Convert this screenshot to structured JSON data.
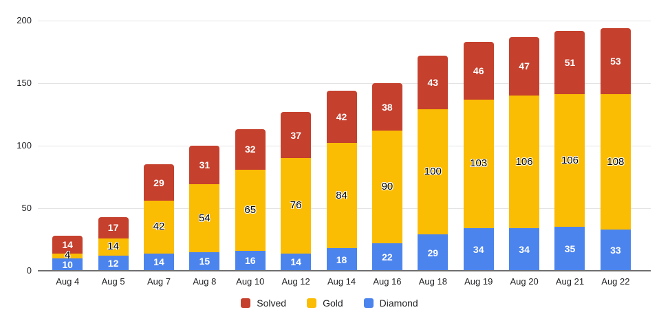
{
  "chart_data": {
    "type": "bar",
    "stacked": true,
    "title": "",
    "xlabel": "",
    "ylabel": "",
    "categories": [
      "Aug 4",
      "Aug 5",
      "Aug 7",
      "Aug 8",
      "Aug 10",
      "Aug 12",
      "Aug 14",
      "Aug 16",
      "Aug 18",
      "Aug 19",
      "Aug 20",
      "Aug 21",
      "Aug 22"
    ],
    "series": [
      {
        "name": "Diamond",
        "color": "#4C84EE",
        "label_color": "light",
        "values": [
          10,
          12,
          14,
          15,
          16,
          14,
          18,
          22,
          29,
          34,
          34,
          35,
          33
        ]
      },
      {
        "name": "Gold",
        "color": "#FBBC04",
        "label_color": "dark",
        "values": [
          4,
          14,
          42,
          54,
          65,
          76,
          84,
          90,
          100,
          103,
          106,
          106,
          108
        ]
      },
      {
        "name": "Solved",
        "color": "#C5402D",
        "label_color": "light",
        "values": [
          14,
          17,
          29,
          31,
          32,
          37,
          42,
          38,
          43,
          46,
          47,
          51,
          53
        ]
      }
    ],
    "totals": [
      28,
      43,
      85,
      100,
      113,
      127,
      144,
      150,
      172,
      183,
      187,
      192,
      194
    ],
    "y_ticks": [
      0,
      50,
      100,
      150,
      200
    ],
    "ylim": [
      0,
      200
    ],
    "grid": true,
    "legend_position": "bottom",
    "legend": [
      {
        "name": "Solved",
        "color": "#C5402D"
      },
      {
        "name": "Gold",
        "color": "#FBBC04"
      },
      {
        "name": "Diamond",
        "color": "#4C84EE"
      }
    ],
    "colors": {
      "background": "#ffffff",
      "gridline": "#e3e3e3",
      "axis_line": "#6e6e6e",
      "axis_text": "#202124"
    }
  }
}
